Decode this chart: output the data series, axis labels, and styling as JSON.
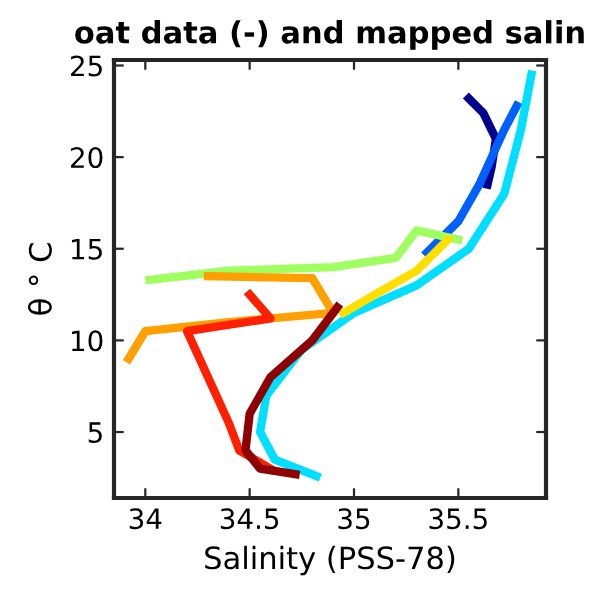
{
  "chart_data": {
    "type": "line",
    "title": "oat data (-) and mapped salin",
    "xlabel": "Salinity (PSS-78)",
    "ylabel": "θ ° C",
    "xlim": [
      33.85,
      35.92
    ],
    "ylim": [
      1.4,
      25.3
    ],
    "xticks": [
      34,
      34.5,
      35,
      35.5
    ],
    "yticks": [
      5,
      10,
      15,
      20,
      25
    ],
    "grid": false,
    "marker": "none",
    "line_style": "solid",
    "series": [
      {
        "color": "#00008f",
        "x": [
          35.55,
          35.62,
          35.68,
          35.66,
          35.64
        ],
        "values": [
          23.2,
          22.4,
          21.0,
          19.5,
          18.5
        ]
      },
      {
        "color": "#0060ff",
        "x": [
          35.78,
          35.72,
          35.66,
          35.6,
          35.5,
          35.35
        ],
        "values": [
          22.8,
          21.5,
          20.0,
          18.5,
          16.5,
          14.8
        ]
      },
      {
        "color": "#00dfff",
        "x": [
          35.85,
          35.8,
          35.72,
          35.55,
          35.3,
          35.0,
          34.75,
          34.58,
          34.55,
          34.62,
          34.82
        ],
        "values": [
          24.5,
          21.5,
          18.0,
          15.0,
          13.0,
          11.5,
          9.5,
          7.0,
          5.0,
          3.5,
          2.6
        ]
      },
      {
        "color": "#9fff60",
        "x": [
          34.02,
          34.4,
          34.9,
          35.2,
          35.3,
          35.5
        ],
        "values": [
          13.3,
          13.8,
          14.0,
          14.5,
          16.0,
          15.5
        ]
      },
      {
        "color": "#ffdf00",
        "x": [
          35.45,
          35.3,
          35.1,
          34.95
        ],
        "values": [
          15.5,
          13.8,
          12.5,
          11.5
        ]
      },
      {
        "color": "#ffa000",
        "x": [
          34.3,
          34.8,
          34.9,
          34.4,
          34.0,
          33.92
        ],
        "values": [
          13.5,
          13.4,
          11.5,
          11.0,
          10.5,
          9.0
        ]
      },
      {
        "color": "#ff2000",
        "x": [
          34.5,
          34.6,
          34.2,
          34.3,
          34.4,
          34.45,
          34.6
        ],
        "values": [
          12.5,
          11.2,
          10.5,
          8.0,
          5.5,
          4.0,
          3.0
        ]
      },
      {
        "color": "#8f0000",
        "x": [
          34.92,
          34.8,
          34.6,
          34.5,
          34.48,
          34.55,
          34.72
        ],
        "values": [
          11.8,
          10.0,
          8.0,
          6.0,
          4.0,
          3.0,
          2.7
        ]
      }
    ]
  }
}
